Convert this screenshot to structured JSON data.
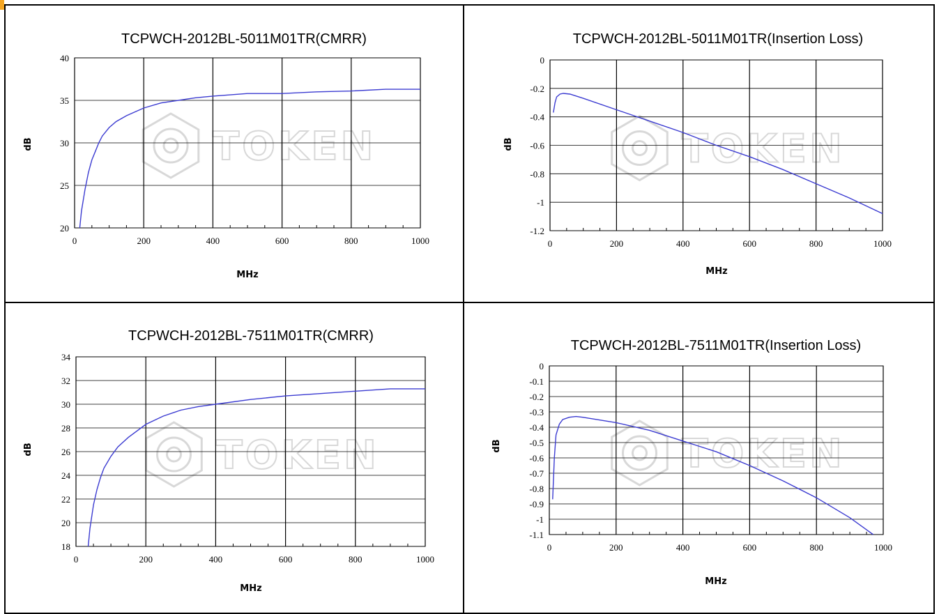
{
  "watermark": {
    "text": "TOKEN",
    "icon": "token-logo-icon",
    "color": "#d8d8d8"
  },
  "colors": {
    "line": "#3b3bd1",
    "grid": "#000000",
    "frame": "#000000"
  },
  "chart_data": [
    {
      "type": "line",
      "title": "TCPWCH-2012BL-5011M01TR(CMRR)",
      "xlabel": "MHz",
      "ylabel": "dB",
      "xlim": [
        0,
        1000
      ],
      "ylim": [
        20,
        40
      ],
      "xticks": [
        "0",
        "200",
        "400",
        "600",
        "800",
        "1000"
      ],
      "yticks": [
        "20",
        "25",
        "30",
        "35",
        "40"
      ],
      "grid": "vertical and horizontal",
      "x": [
        15,
        20,
        30,
        40,
        50,
        60,
        70,
        80,
        100,
        120,
        150,
        200,
        250,
        300,
        350,
        400,
        500,
        600,
        700,
        800,
        900,
        1000
      ],
      "y": [
        20.0,
        22.0,
        24.5,
        26.5,
        28.0,
        29.0,
        30.0,
        30.8,
        31.8,
        32.5,
        33.2,
        34.1,
        34.7,
        35.0,
        35.3,
        35.5,
        35.8,
        35.8,
        36.0,
        36.1,
        36.3,
        36.3
      ]
    },
    {
      "type": "line",
      "title": "TCPWCH-2012BL-5011M01TR(Insertion Loss)",
      "xlabel": "MHz",
      "ylabel": "dB",
      "xlim": [
        0,
        1000
      ],
      "ylim": [
        -1.2,
        0
      ],
      "xticks": [
        "0",
        "200",
        "400",
        "600",
        "800",
        "1000"
      ],
      "yticks": [
        "0",
        "-0.2",
        "-0.4",
        "-0.6",
        "-0.8",
        "-1",
        "-1.2"
      ],
      "grid": "vertical and horizontal",
      "x": [
        10,
        15,
        20,
        30,
        40,
        60,
        100,
        200,
        300,
        400,
        500,
        600,
        700,
        800,
        900,
        1000
      ],
      "y": [
        -0.37,
        -0.3,
        -0.26,
        -0.24,
        -0.235,
        -0.24,
        -0.27,
        -0.35,
        -0.43,
        -0.51,
        -0.6,
        -0.68,
        -0.77,
        -0.87,
        -0.97,
        -1.08
      ]
    },
    {
      "type": "line",
      "title": "TCPWCH-2012BL-7511M01TR(CMRR)",
      "xlabel": "MHz",
      "ylabel": "dB",
      "xlim": [
        0,
        1000
      ],
      "ylim": [
        18,
        34
      ],
      "xticks": [
        "0",
        "200",
        "400",
        "600",
        "800",
        "1000"
      ],
      "yticks": [
        "18",
        "20",
        "22",
        "24",
        "26",
        "28",
        "30",
        "32",
        "34"
      ],
      "grid": "vertical and horizontal",
      "x": [
        35,
        40,
        50,
        60,
        70,
        80,
        100,
        120,
        150,
        200,
        250,
        300,
        350,
        400,
        500,
        600,
        700,
        800,
        900,
        1000
      ],
      "y": [
        18.0,
        19.5,
        21.5,
        22.8,
        23.8,
        24.6,
        25.6,
        26.4,
        27.2,
        28.3,
        29.0,
        29.5,
        29.8,
        30.0,
        30.4,
        30.7,
        30.9,
        31.1,
        31.3,
        31.3
      ]
    },
    {
      "type": "line",
      "title": "TCPWCH-2012BL-7511M01TR(Insertion Loss)",
      "xlabel": "MHz",
      "ylabel": "dB",
      "xlim": [
        0,
        1000
      ],
      "ylim": [
        -1.1,
        0
      ],
      "xticks": [
        "0",
        "200",
        "400",
        "600",
        "800",
        "1000"
      ],
      "yticks": [
        "0",
        "-0.1",
        "-0.2",
        "-0.3",
        "-0.4",
        "-0.5",
        "-0.6",
        "-0.7",
        "-0.8",
        "-0.9",
        "-1",
        "-1.1"
      ],
      "grid": "vertical and horizontal",
      "x": [
        10,
        15,
        20,
        30,
        40,
        60,
        80,
        100,
        200,
        300,
        400,
        500,
        600,
        700,
        800,
        900,
        970
      ],
      "y": [
        -0.87,
        -0.6,
        -0.45,
        -0.38,
        -0.35,
        -0.335,
        -0.33,
        -0.335,
        -0.37,
        -0.42,
        -0.49,
        -0.56,
        -0.65,
        -0.75,
        -0.86,
        -0.99,
        -1.1
      ]
    }
  ]
}
